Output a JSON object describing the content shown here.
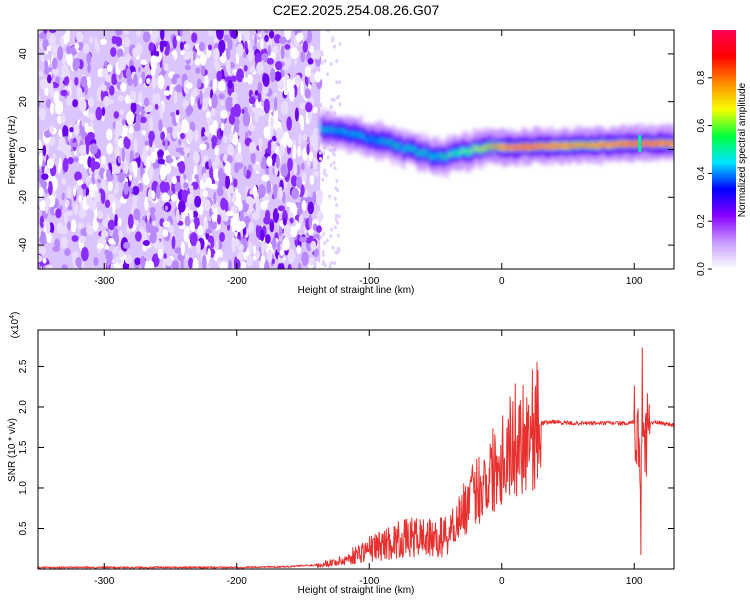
{
  "page_title": "C2E2.2025.254.08.26.G07",
  "chart_data": [
    {
      "type": "heatmap",
      "title": "C2E2.2025.254.08.26.G07",
      "xlabel": "Height of straight line (km)",
      "ylabel": "Frequency (Hz)",
      "xlim": [
        -350,
        130
      ],
      "ylim": [
        -50,
        50
      ],
      "x_ticks": [
        -300,
        -200,
        -100,
        0,
        100
      ],
      "y_ticks": [
        -40,
        -20,
        0,
        20,
        40
      ],
      "colorbar": {
        "label": "Normalized spectral amplitude",
        "range": [
          0,
          1
        ],
        "ticks": [
          0.0,
          0.2,
          0.4,
          0.6,
          0.8
        ],
        "tick_labels": [
          "0.0",
          "0.2",
          "0.4",
          "0.6",
          "0.8"
        ],
        "colors": [
          "#ffffff",
          "#c89bff",
          "#8a00ff",
          "#0000ff",
          "#00e5ff",
          "#00ff3c",
          "#f5ff00",
          "#ff8c00",
          "#ff0000",
          "#ff0055"
        ]
      },
      "noise_region_x": [
        -350,
        -137
      ],
      "ridge": {
        "x": [
          -137,
          -125,
          -112,
          -100,
          -90,
          -80,
          -70,
          -60,
          -50,
          -40,
          -30,
          -20,
          -10,
          0,
          10,
          20,
          40,
          60,
          80,
          100,
          110,
          130
        ],
        "y": [
          8.5,
          7.5,
          6.5,
          4.5,
          3,
          1.5,
          0,
          -1.5,
          -3,
          -2.5,
          -1,
          0,
          1,
          1,
          1,
          1.2,
          1.5,
          1.7,
          2,
          2.5,
          2.5,
          2.6
        ],
        "amplitude": [
          0.45,
          0.45,
          0.45,
          0.45,
          0.45,
          0.5,
          0.5,
          0.5,
          0.5,
          0.55,
          0.6,
          0.65,
          0.75,
          0.9,
          0.95,
          0.95,
          0.9,
          0.85,
          0.9,
          0.95,
          0.95,
          0.9
        ]
      }
    },
    {
      "type": "line",
      "xlabel": "Height of straight line (km)",
      "ylabel": "SNR (10 * v/v)",
      "y_multiplier": "(x10",
      "y_multiplier_exp": "4",
      "y_multiplier_close": ")",
      "xlim": [
        -350,
        130
      ],
      "ylim": [
        0,
        2.95
      ],
      "x_ticks": [
        -300,
        -200,
        -100,
        0,
        100
      ],
      "y_ticks": [
        0.5,
        1.0,
        1.5,
        2.0,
        2.5
      ],
      "y_tick_labels": [
        "0.5",
        "1.0",
        "1.5",
        "2.0",
        "2.5"
      ],
      "color": "#e8312f",
      "series": [
        {
          "x": [
            -350,
            -300,
            -250,
            -200,
            -160,
            -140,
            -120,
            -110,
            -100,
            -90,
            -80,
            -70,
            -60,
            -50,
            -40,
            -30,
            -20,
            -10,
            0,
            10,
            20,
            30,
            40,
            50,
            60,
            70,
            80,
            90,
            95,
            100,
            103,
            105,
            106,
            107,
            108,
            110,
            115,
            120,
            130
          ],
          "y": [
            0.02,
            0.02,
            0.02,
            0.02,
            0.03,
            0.05,
            0.1,
            0.18,
            0.25,
            0.3,
            0.35,
            0.38,
            0.4,
            0.35,
            0.45,
            0.7,
            0.95,
            1.15,
            1.4,
            1.58,
            1.72,
            1.8,
            1.82,
            1.8,
            1.8,
            1.8,
            1.8,
            1.8,
            1.79,
            1.81,
            1.7,
            0.5,
            2.3,
            1.9,
            1.4,
            1.8,
            1.81,
            1.8,
            1.78
          ]
        }
      ]
    }
  ]
}
